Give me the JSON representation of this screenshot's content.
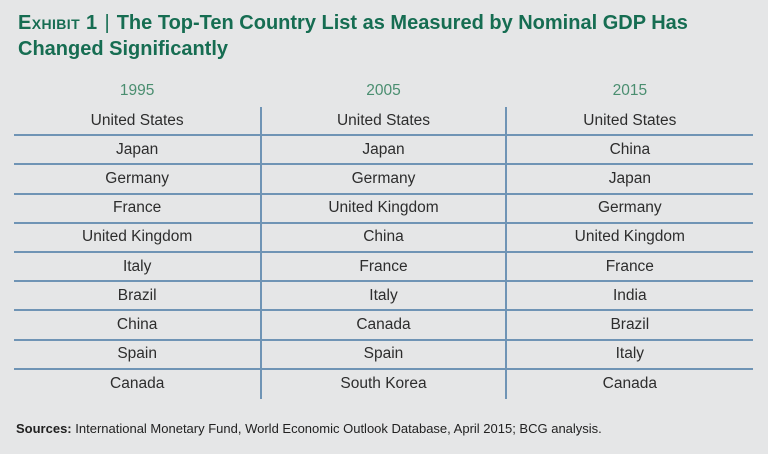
{
  "header": {
    "exhibit_label": "Exhibit 1",
    "separator": "|",
    "title": "The Top-Ten Country List as Measured by Nominal GDP Has Changed Significantly"
  },
  "chart_data": {
    "type": "table",
    "title": "Exhibit 1 | The Top-Ten Country List as Measured by Nominal GDP Has Changed Significantly",
    "columns": [
      "1995",
      "2005",
      "2015"
    ],
    "rows": [
      [
        "United States",
        "United States",
        "United States"
      ],
      [
        "Japan",
        "Japan",
        "China"
      ],
      [
        "Germany",
        "Germany",
        "Japan"
      ],
      [
        "France",
        "United Kingdom",
        "Germany"
      ],
      [
        "United Kingdom",
        "China",
        "United Kingdom"
      ],
      [
        "Italy",
        "France",
        "France"
      ],
      [
        "Brazil",
        "Italy",
        "India"
      ],
      [
        "China",
        "Canada",
        "Brazil"
      ],
      [
        "Spain",
        "Spain",
        "Italy"
      ],
      [
        "Canada",
        "South Korea",
        "Canada"
      ]
    ],
    "source": "Sources: International Monetary Fund, World Economic Outlook Database, April 2015; BCG analysis."
  },
  "footer": {
    "sources_label": "Sources:",
    "sources_text": "International Monetary Fund, World Economic Outlook Database, April 2015; BCG analysis."
  },
  "colors": {
    "background": "#e5e6e7",
    "title_green": "#166d52",
    "year_green": "#4a8e70",
    "line_blue": "#6f94b5",
    "text_dark": "#2d2d2d"
  }
}
